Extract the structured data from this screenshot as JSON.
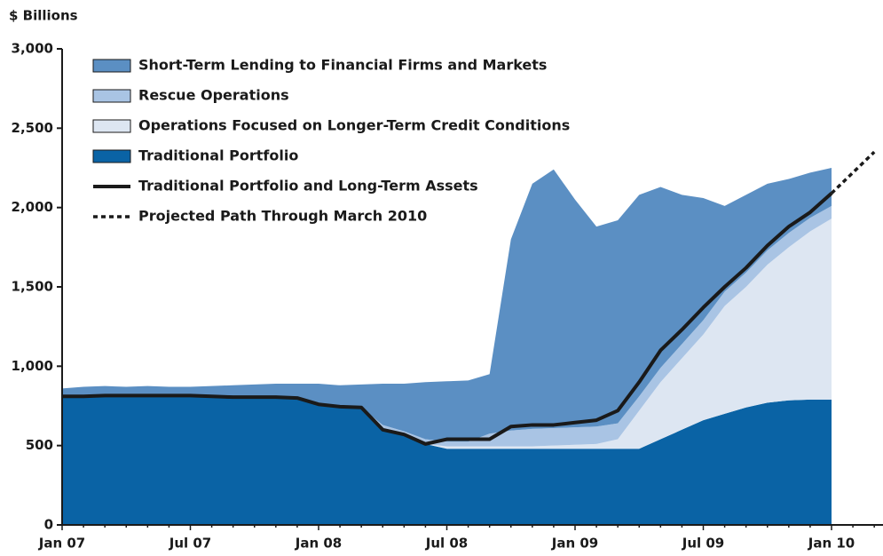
{
  "chart_data": {
    "type": "stacked-area",
    "ylabel": "$ Billions",
    "categories": [
      "Jan 07",
      null,
      null,
      null,
      null,
      null,
      "Jul 07",
      null,
      null,
      null,
      null,
      null,
      "Jan 08",
      null,
      null,
      null,
      null,
      null,
      "Jul 08",
      null,
      null,
      null,
      null,
      null,
      "Jan 09",
      null,
      null,
      null,
      null,
      null,
      "Jul 09",
      null,
      null,
      null,
      null,
      null,
      "Jan 10",
      null,
      null
    ],
    "ylim": [
      0,
      3000
    ],
    "yticks": [
      0,
      500,
      {
        "value": 1000,
        "label": "1,000"
      },
      {
        "value": 1500,
        "label": "1,500"
      },
      {
        "value": 2000,
        "label": "2,000"
      },
      {
        "value": 2500,
        "label": "2,500"
      },
      {
        "value": 3000,
        "label": "3,000"
      }
    ],
    "legend": "upper left",
    "series": [
      {
        "name": "Short-Term Lending to Financial Firms and Markets",
        "type": "area",
        "color": "#5b8fc3",
        "values": [
          50,
          60,
          60,
          55,
          60,
          55,
          55,
          65,
          75,
          80,
          85,
          90,
          130,
          135,
          145,
          260,
          300,
          360,
          380,
          385,
          375,
          1205,
          1545,
          1630,
          1435,
          1260,
          1280,
          1270,
          1140,
          940,
          770,
          540,
          490,
          420,
          340,
          285,
          240,
          null,
          null
        ]
      },
      {
        "name": "Rescue Operations",
        "type": "area",
        "color": "#a9c4e4",
        "values": [
          0,
          0,
          0,
          0,
          0,
          0,
          0,
          0,
          0,
          0,
          0,
          0,
          0,
          0,
          0,
          30,
          30,
          30,
          30,
          30,
          80,
          100,
          110,
          110,
          110,
          110,
          100,
          90,
          90,
          90,
          90,
          90,
          90,
          90,
          90,
          85,
          80,
          null,
          null
        ]
      },
      {
        "name": "Operations Focused on Longer-Term Credit Conditions",
        "type": "area",
        "color": "#dde6f2",
        "values": [
          0,
          0,
          0,
          0,
          0,
          0,
          0,
          0,
          0,
          0,
          0,
          0,
          0,
          0,
          0,
          0,
          0,
          0,
          15,
          15,
          15,
          15,
          15,
          20,
          25,
          30,
          60,
          240,
          360,
          450,
          540,
          680,
          760,
          870,
          965,
          1060,
          1140,
          null,
          null
        ]
      },
      {
        "name": "Traditional Portfolio",
        "type": "area",
        "color": "#0a63a5",
        "values": [
          810,
          810,
          815,
          815,
          815,
          815,
          815,
          810,
          805,
          805,
          805,
          800,
          760,
          745,
          740,
          600,
          560,
          510,
          480,
          480,
          480,
          480,
          480,
          480,
          480,
          480,
          480,
          480,
          540,
          600,
          660,
          700,
          740,
          770,
          785,
          790,
          790,
          null,
          null
        ]
      },
      {
        "name": "Traditional Portfolio and Long-Term Assets",
        "type": "line",
        "color": "#1a1a1a",
        "dashed": false,
        "values": [
          810,
          810,
          815,
          815,
          815,
          815,
          815,
          810,
          805,
          805,
          805,
          800,
          760,
          745,
          740,
          600,
          570,
          510,
          540,
          540,
          540,
          620,
          630,
          630,
          645,
          660,
          720,
          900,
          1100,
          1230,
          1370,
          1500,
          1620,
          1760,
          1880,
          1970,
          2090,
          null,
          null
        ]
      },
      {
        "name": "Projected Path Through March 2010",
        "type": "line",
        "color": "#1a1a1a",
        "dashed": true,
        "values": [
          null,
          null,
          null,
          null,
          null,
          null,
          null,
          null,
          null,
          null,
          null,
          null,
          null,
          null,
          null,
          null,
          null,
          null,
          null,
          null,
          null,
          null,
          null,
          null,
          null,
          null,
          null,
          null,
          null,
          null,
          null,
          null,
          null,
          null,
          null,
          null,
          2090,
          2220,
          2350
        ]
      }
    ]
  }
}
